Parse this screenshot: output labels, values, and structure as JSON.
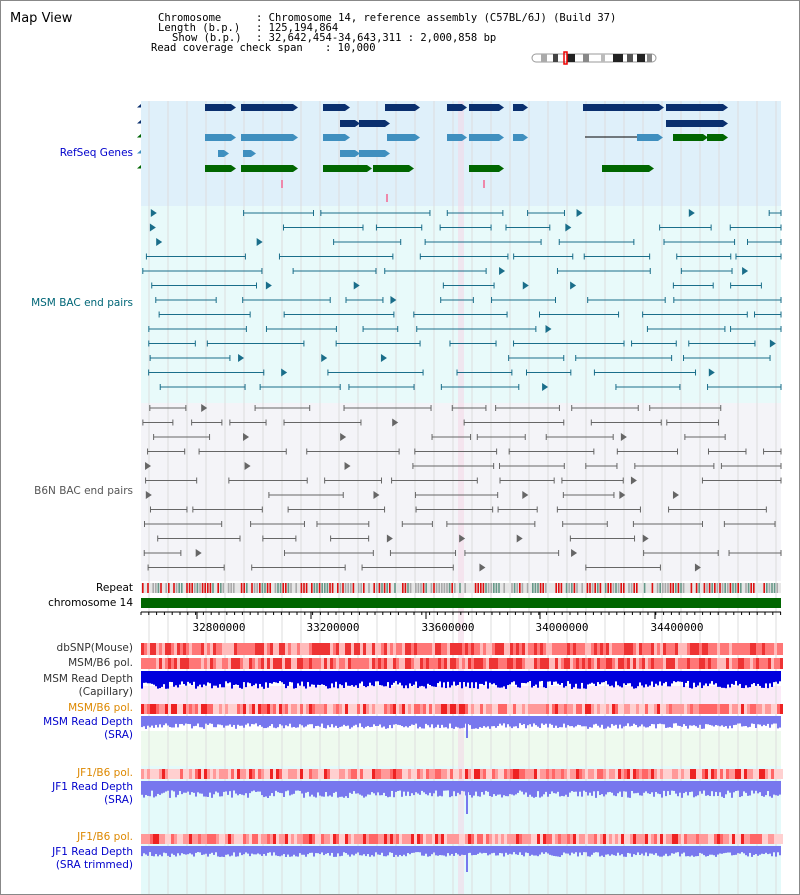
{
  "page": {
    "title": "Map View"
  },
  "header": {
    "chromosome_label": "Chromosome",
    "chromosome_value": ": Chromosome 14, reference assembly (C57BL/6J) (Build 37)",
    "length_label": "Length (b.p.)",
    "length_value": ": 125,194,864",
    "show_label": "Show (b.p.)",
    "show_value": ": 32,642,454-34,643,311 : 2,000,858 bp",
    "coverage_label": "Read coverage check span",
    "coverage_value": ": 10,000"
  },
  "tracks": {
    "refseq": {
      "label": "RefSeq Genes",
      "color": "#0000cc"
    },
    "msm_bac": {
      "label": "MSM BAC end pairs",
      "color": "#006677"
    },
    "b6n_bac": {
      "label": "B6N BAC end pairs",
      "color": "#555555"
    },
    "repeat": {
      "label": "Repeat"
    },
    "chromosome": {
      "label": "chromosome 14"
    },
    "dbsnp": {
      "label": "dbSNP(Mouse)"
    },
    "msm_b6_pol": {
      "label": "MSM/B6 pol."
    },
    "msm_depth_cap": {
      "label1": "MSM Read Depth",
      "label2": "(Capillary)"
    },
    "msm_b6_pol2": {
      "label": "MSM/B6 pol.",
      "color": "#dd8800"
    },
    "msm_depth_sra": {
      "label1": "MSM Read Depth",
      "label2": "(SRA)",
      "color": "#0000cc"
    },
    "jf1_b6_pol": {
      "label": "JF1/B6 pol.",
      "color": "#dd8800"
    },
    "jf1_depth_sra": {
      "label1": "JF1 Read Depth",
      "label2": "(SRA)",
      "color": "#0000cc"
    },
    "jf1_b6_pol2": {
      "label": "JF1/B6 pol.",
      "color": "#dd8800"
    },
    "jf1_depth_trim": {
      "label1": "JF1 Read Depth",
      "label2": "(SRA trimmed)",
      "color": "#0000cc"
    }
  },
  "axis": {
    "ticks": [
      "32800000",
      "33200000",
      "33600000",
      "34000000",
      "34400000"
    ]
  },
  "colors": {
    "refseq_bg": "#dff0fa",
    "msm_bg": "#e8fafa",
    "b6n_bg": "#f4f4f8",
    "gene_dark": "#0a2f6e",
    "gene_mid": "#3f8fbf",
    "gene_green": "#006600",
    "bac_msm": "#1a6e8a",
    "bac_b6n": "#666666",
    "chromosome": "#006600",
    "depth_dark": "#0000dd",
    "depth_light": "#7777ee"
  }
}
